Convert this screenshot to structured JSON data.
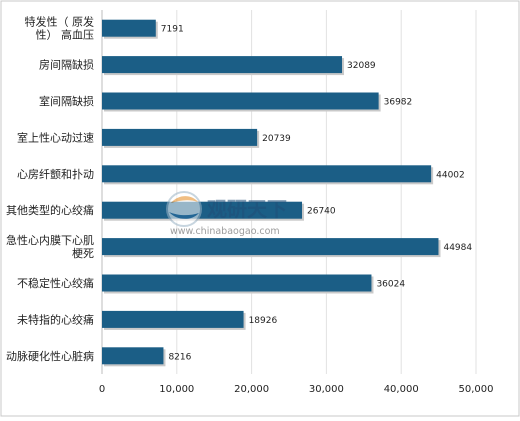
{
  "chart_data": {
    "type": "bar",
    "orientation": "horizontal",
    "categories": [
      "特发性（ 原发性） 高血压",
      "房间隔缺损",
      "室间隔缺损",
      "室上性心动过速",
      "心房纤颤和扑动",
      "其他类型的心绞痛",
      "急性心内膜下心肌梗死",
      "不稳定性心绞痛",
      "未特指的心绞痛",
      "动脉硬化性心脏病"
    ],
    "category_lines": [
      [
        "特发性（ 原发",
        "性） 高血压"
      ],
      [
        "房间隔缺损"
      ],
      [
        "室间隔缺损"
      ],
      [
        "室上性心动过速"
      ],
      [
        "心房纤颤和扑动"
      ],
      [
        "其他类型的心绞痛"
      ],
      [
        "急性心内膜下心肌",
        "梗死"
      ],
      [
        "不稳定性心绞痛"
      ],
      [
        "未特指的心绞痛"
      ],
      [
        "动脉硬化性心脏病"
      ]
    ],
    "values": [
      7191,
      32089,
      36982,
      20739,
      44002,
      26740,
      44984,
      36024,
      18926,
      8216
    ],
    "data_labels": [
      "7191",
      "32089",
      "36982",
      "20739",
      "44002",
      "26740",
      "44984",
      "36024",
      "18926",
      "8216"
    ],
    "xlim": [
      0,
      50000
    ],
    "xticks": [
      0,
      10000,
      20000,
      30000,
      40000,
      50000
    ],
    "xtick_labels": [
      "0",
      "10,000",
      "20,000",
      "30,000",
      "40,000",
      "50,000"
    ],
    "bar_color": "#1b5e86",
    "grid": true,
    "legend": "none",
    "title": "",
    "xlabel": "",
    "ylabel": ""
  },
  "watermark": {
    "brand": "观研天下",
    "url": "www.chinabaogao.com"
  }
}
